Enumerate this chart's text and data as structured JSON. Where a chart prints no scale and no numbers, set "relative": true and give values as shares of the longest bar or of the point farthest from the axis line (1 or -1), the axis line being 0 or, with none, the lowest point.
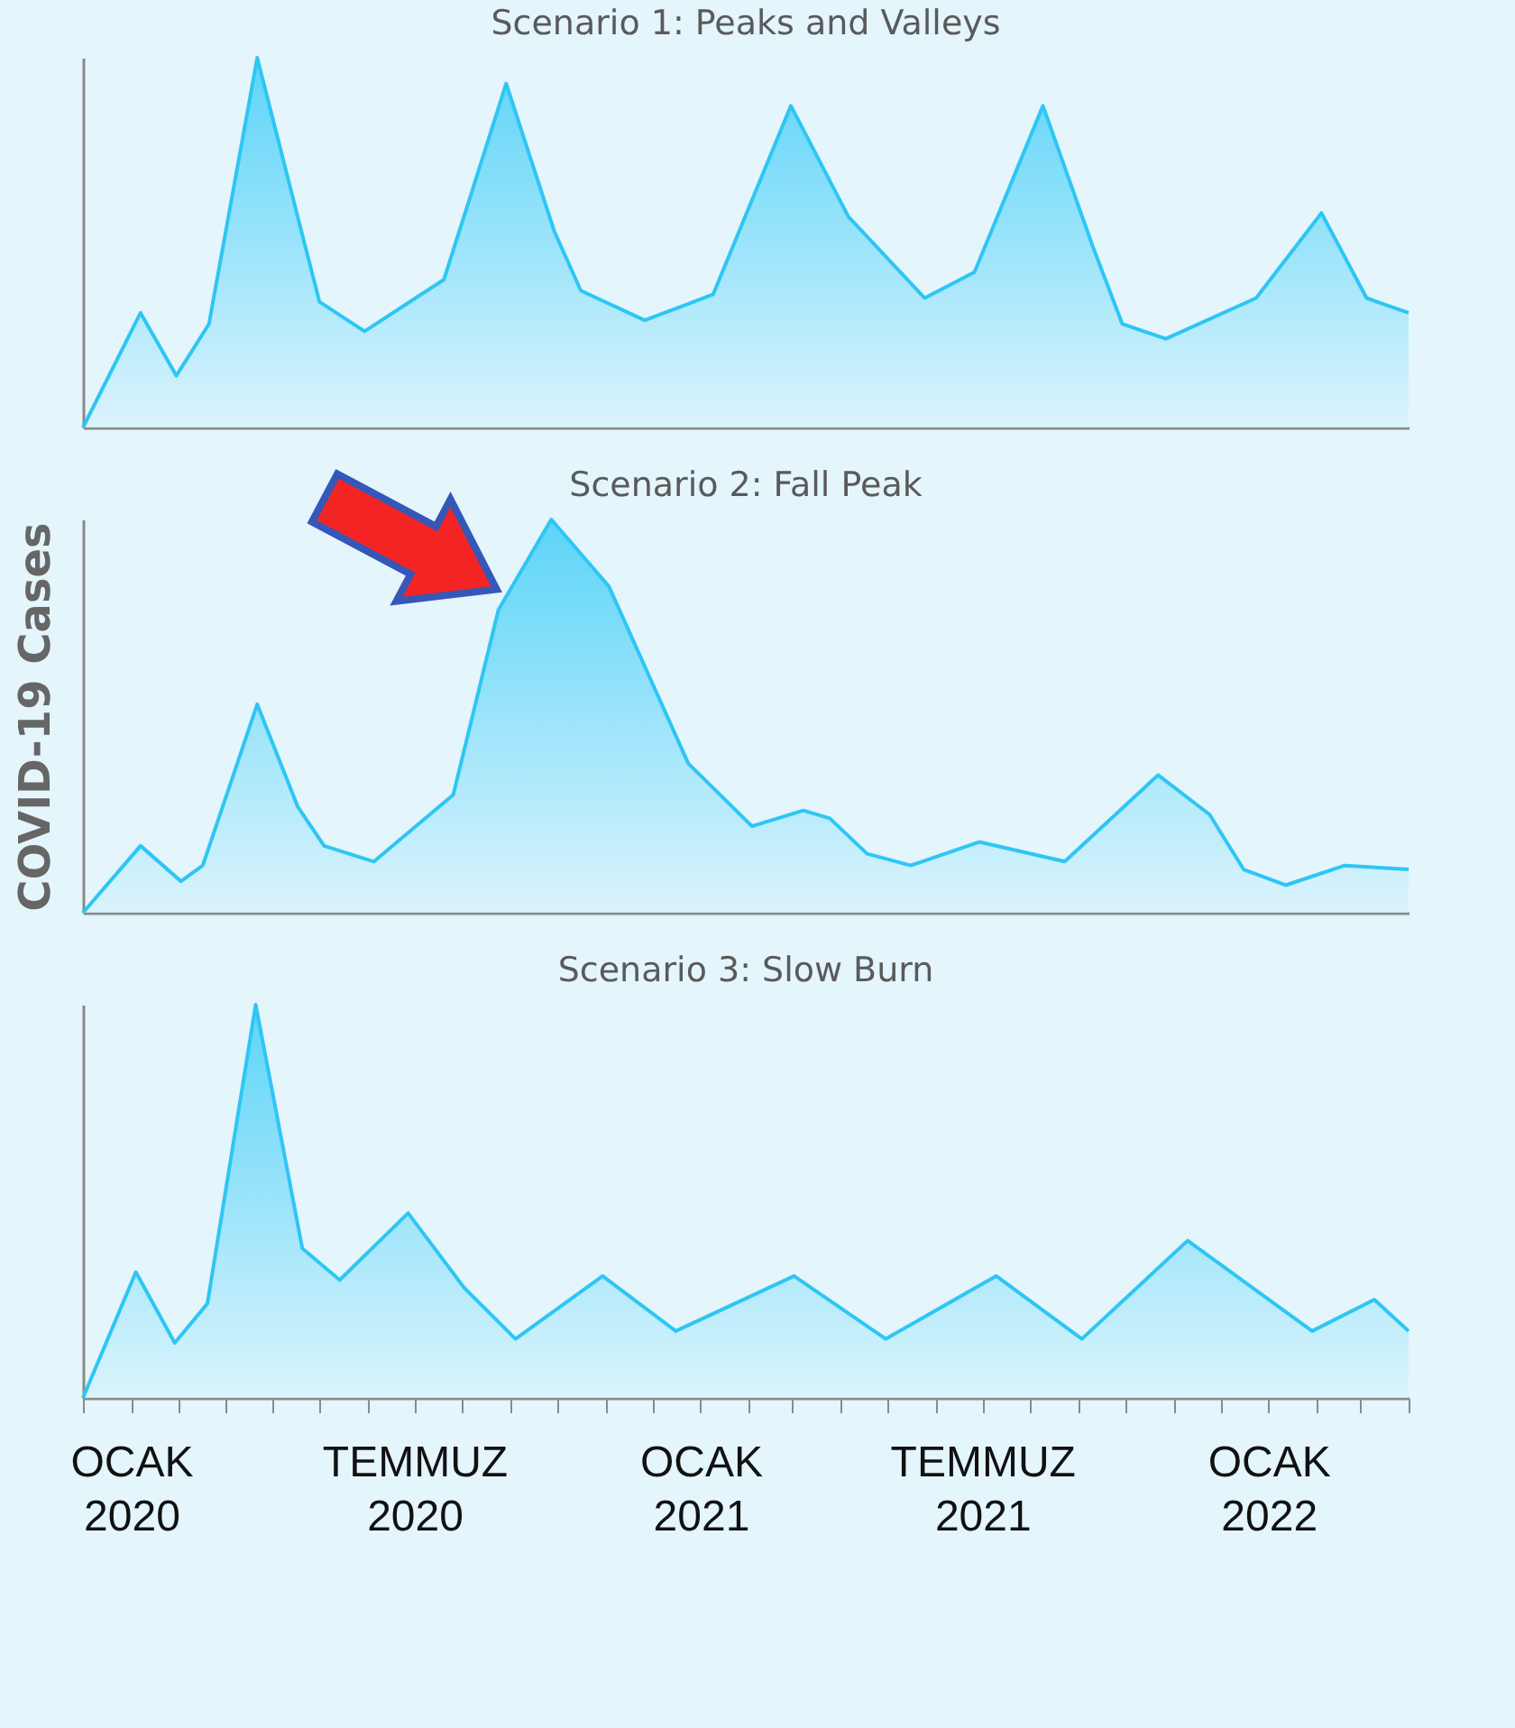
{
  "chart_data": [
    {
      "type": "area",
      "title": "Scenario 1: Peaks and Valleys",
      "relative": true,
      "xlim": [
        "2019-12",
        "2022-04"
      ],
      "series": [
        {
          "color": "#2ec6f4",
          "x": [
            "2019-12-01",
            "2020-01-07",
            "2020-01-30",
            "2020-02-20",
            "2020-03-22",
            "2020-04-17",
            "2020-05-01",
            "2020-05-30",
            "2020-07-20",
            "2020-08-29",
            "2020-09-29",
            "2020-10-16",
            "2020-11-26",
            "2021-01-09",
            "2021-02-28",
            "2021-04-06",
            "2021-05-25",
            "2021-06-26",
            "2021-08-09",
            "2021-09-10",
            "2021-09-29",
            "2021-10-27",
            "2021-12-24",
            "2022-02-04",
            "2022-03-05",
            "2022-04-01"
          ],
          "values": [
            0,
            0.31,
            0.14,
            0.28,
            1,
            0.57,
            0.34,
            0.26,
            0.4,
            0.93,
            0.53,
            0.37,
            0.29,
            0.36,
            0.87,
            0.57,
            0.35,
            0.42,
            0.87,
            0.49,
            0.28,
            0.24,
            0.35,
            0.58,
            0.35,
            0.31
          ]
        }
      ]
    },
    {
      "type": "area",
      "title": "Scenario 2: Fall Peak",
      "ylabel": "COVID-19 Cases",
      "relative": true,
      "xlim": [
        "2019-12",
        "2022-04"
      ],
      "series": [
        {
          "color": "#2ec6f4",
          "x": [
            "2019-12-01",
            "2020-01-07",
            "2020-02-02",
            "2020-02-16",
            "2020-03-22",
            "2020-04-17",
            "2020-05-04",
            "2020-06-05",
            "2020-07-26",
            "2020-08-24",
            "2020-09-27",
            "2020-11-03",
            "2020-12-24",
            "2021-02-03",
            "2021-03-08",
            "2021-03-25",
            "2021-04-18",
            "2021-05-16",
            "2021-06-29",
            "2021-08-23",
            "2021-10-22",
            "2021-11-24",
            "2021-12-16",
            "2022-01-12",
            "2022-02-19",
            "2022-04-01"
          ],
          "values": [
            0,
            0.17,
            0.08,
            0.12,
            0.53,
            0.27,
            0.17,
            0.13,
            0.3,
            0.77,
            1,
            0.83,
            0.38,
            0.22,
            0.26,
            0.24,
            0.15,
            0.12,
            0.18,
            0.13,
            0.35,
            0.25,
            0.11,
            0.07,
            0.12,
            0.11
          ]
        }
      ]
    },
    {
      "type": "area",
      "title": "Scenario 3: Slow Burn",
      "relative": true,
      "xlim": [
        "2019-12",
        "2022-04"
      ],
      "tick_labels": "x",
      "xticks": [
        {
          "value": "2019-12",
          "label": null
        },
        {
          "value": "2020-01",
          "label": "OCAK 2020"
        },
        {
          "value": "2020-02",
          "label": null
        },
        {
          "value": "2020-03",
          "label": null
        },
        {
          "value": "2020-04",
          "label": null
        },
        {
          "value": "2020-05",
          "label": null
        },
        {
          "value": "2020-06",
          "label": null
        },
        {
          "value": "2020-07",
          "label": "TEMMUZ 2020"
        },
        {
          "value": "2020-08",
          "label": null
        },
        {
          "value": "2020-09",
          "label": null
        },
        {
          "value": "2020-10",
          "label": null
        },
        {
          "value": "2020-11",
          "label": null
        },
        {
          "value": "2020-12",
          "label": null
        },
        {
          "value": "2021-01",
          "label": "OCAK 2021"
        },
        {
          "value": "2021-02",
          "label": null
        },
        {
          "value": "2021-03",
          "label": null
        },
        {
          "value": "2021-04",
          "label": null
        },
        {
          "value": "2021-05",
          "label": null
        },
        {
          "value": "2021-06",
          "label": null
        },
        {
          "value": "2021-07",
          "label": "TEMMUZ 2021"
        },
        {
          "value": "2021-08",
          "label": null
        },
        {
          "value": "2021-09",
          "label": null
        },
        {
          "value": "2021-10",
          "label": null
        },
        {
          "value": "2021-11",
          "label": null
        },
        {
          "value": "2021-12",
          "label": null
        },
        {
          "value": "2022-01",
          "label": "OCAK 2022"
        },
        {
          "value": "2022-02",
          "label": null
        },
        {
          "value": "2022-03",
          "label": null
        },
        {
          "value": "2022-04",
          "label": null
        }
      ],
      "series": [
        {
          "color": "#2ec6f4",
          "x": [
            "2019-12-01",
            "2020-01-04",
            "2020-01-29",
            "2020-02-19",
            "2020-03-21",
            "2020-04-20",
            "2020-05-14",
            "2020-06-27",
            "2020-08-02",
            "2020-09-04",
            "2020-10-30",
            "2020-12-16",
            "2021-03-02",
            "2021-04-30",
            "2021-07-10",
            "2021-09-03",
            "2021-11-10",
            "2022-01-29",
            "2022-03-10",
            "2022-04-01"
          ],
          "values": [
            0,
            0.32,
            0.14,
            0.24,
            1,
            0.38,
            0.3,
            0.47,
            0.28,
            0.15,
            0.31,
            0.17,
            0.31,
            0.15,
            0.31,
            0.15,
            0.4,
            0.17,
            0.25,
            0.17
          ]
        }
      ]
    }
  ]
}
